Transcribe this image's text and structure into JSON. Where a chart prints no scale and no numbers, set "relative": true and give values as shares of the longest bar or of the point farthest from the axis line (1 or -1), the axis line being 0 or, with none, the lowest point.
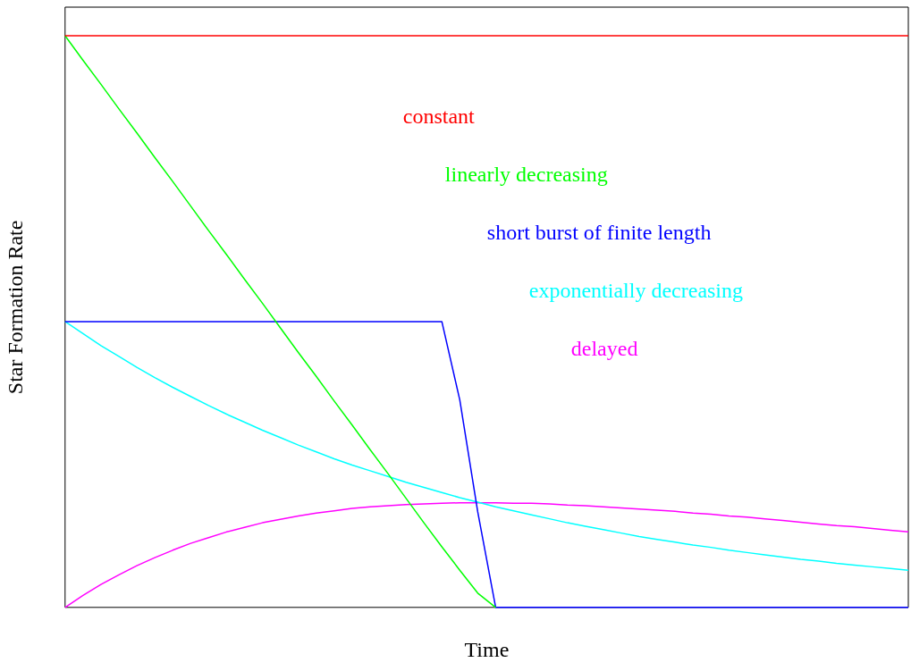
{
  "chart_data": {
    "type": "line",
    "relative": true,
    "xlabel": "Time",
    "ylabel": "Star Formation Rate",
    "marker": "none",
    "line_style": "solid",
    "categories": [
      null,
      null,
      null,
      null,
      null,
      null,
      null,
      null,
      null,
      null,
      null,
      null,
      null,
      null,
      null,
      null,
      null,
      null,
      null,
      null,
      null,
      null,
      null,
      null,
      null,
      null,
      null,
      null,
      null,
      null,
      null,
      null,
      null,
      null,
      null,
      null,
      null,
      null,
      null,
      null,
      null,
      null,
      null,
      null,
      null,
      null,
      null,
      null
    ],
    "series": [
      {
        "name": "constant",
        "color": "#ff0000",
        "values": [
          1,
          1,
          1,
          1,
          1,
          1,
          1,
          1,
          1,
          1,
          1,
          1,
          1,
          1,
          1,
          1,
          1,
          1,
          1,
          1,
          1,
          1,
          1,
          1,
          1,
          1,
          1,
          1,
          1,
          1,
          1,
          1,
          1,
          1,
          1,
          1,
          1,
          1,
          1,
          1,
          1,
          1,
          1,
          1,
          1,
          1,
          1,
          1
        ]
      },
      {
        "name": "linearly decreasing",
        "color": "#00ff00",
        "values": [
          1,
          0.957,
          0.915,
          0.872,
          0.83,
          0.787,
          0.745,
          0.702,
          0.659,
          0.617,
          0.574,
          0.532,
          0.489,
          0.446,
          0.404,
          0.361,
          0.319,
          0.276,
          0.234,
          0.191,
          0.148,
          0.106,
          0.065,
          0.025,
          0,
          null,
          null,
          null,
          null,
          null,
          null,
          null,
          null,
          null,
          null,
          null,
          null,
          null,
          null,
          null,
          null,
          null,
          null,
          null,
          null,
          null,
          null,
          null
        ]
      },
      {
        "name": "short burst of finite length",
        "color": "#0000ff",
        "values": [
          0.5,
          0.5,
          0.5,
          0.5,
          0.5,
          0.5,
          0.5,
          0.5,
          0.5,
          0.5,
          0.5,
          0.5,
          0.5,
          0.5,
          0.5,
          0.5,
          0.5,
          0.5,
          0.5,
          0.5,
          0.5,
          0.5,
          0.363,
          0.167,
          0,
          0,
          0,
          0,
          0,
          0,
          0,
          0,
          0,
          0,
          0,
          0,
          0,
          0,
          0,
          0,
          0,
          0,
          0,
          0,
          0,
          0,
          0,
          0
        ]
      },
      {
        "name": "exponentially decreasing",
        "color": "#00ffff",
        "values": [
          0.5,
          0.479,
          0.458,
          0.439,
          0.42,
          0.402,
          0.385,
          0.369,
          0.353,
          0.338,
          0.324,
          0.31,
          0.297,
          0.284,
          0.272,
          0.26,
          0.249,
          0.239,
          0.229,
          0.219,
          0.21,
          0.201,
          0.192,
          0.184,
          0.176,
          0.169,
          0.162,
          0.155,
          0.148,
          0.142,
          0.136,
          0.13,
          0.124,
          0.119,
          0.114,
          0.109,
          0.105,
          0.1,
          0.096,
          0.092,
          0.088,
          0.084,
          0.081,
          0.077,
          0.074,
          0.071,
          0.068,
          0.065
        ]
      },
      {
        "name": "delayed",
        "color": "#ff00ff",
        "values": [
          0,
          0.021,
          0.04,
          0.057,
          0.073,
          0.087,
          0.1,
          0.112,
          0.122,
          0.132,
          0.14,
          0.148,
          0.154,
          0.16,
          0.165,
          0.169,
          0.173,
          0.176,
          0.178,
          0.18,
          0.181,
          0.182,
          0.183,
          0.183,
          0.183,
          0.182,
          0.182,
          0.181,
          0.179,
          0.178,
          0.176,
          0.174,
          0.172,
          0.17,
          0.168,
          0.165,
          0.163,
          0.16,
          0.158,
          0.155,
          0.152,
          0.149,
          0.146,
          0.143,
          0.141,
          0.138,
          0.135,
          0.132
        ]
      }
    ]
  }
}
